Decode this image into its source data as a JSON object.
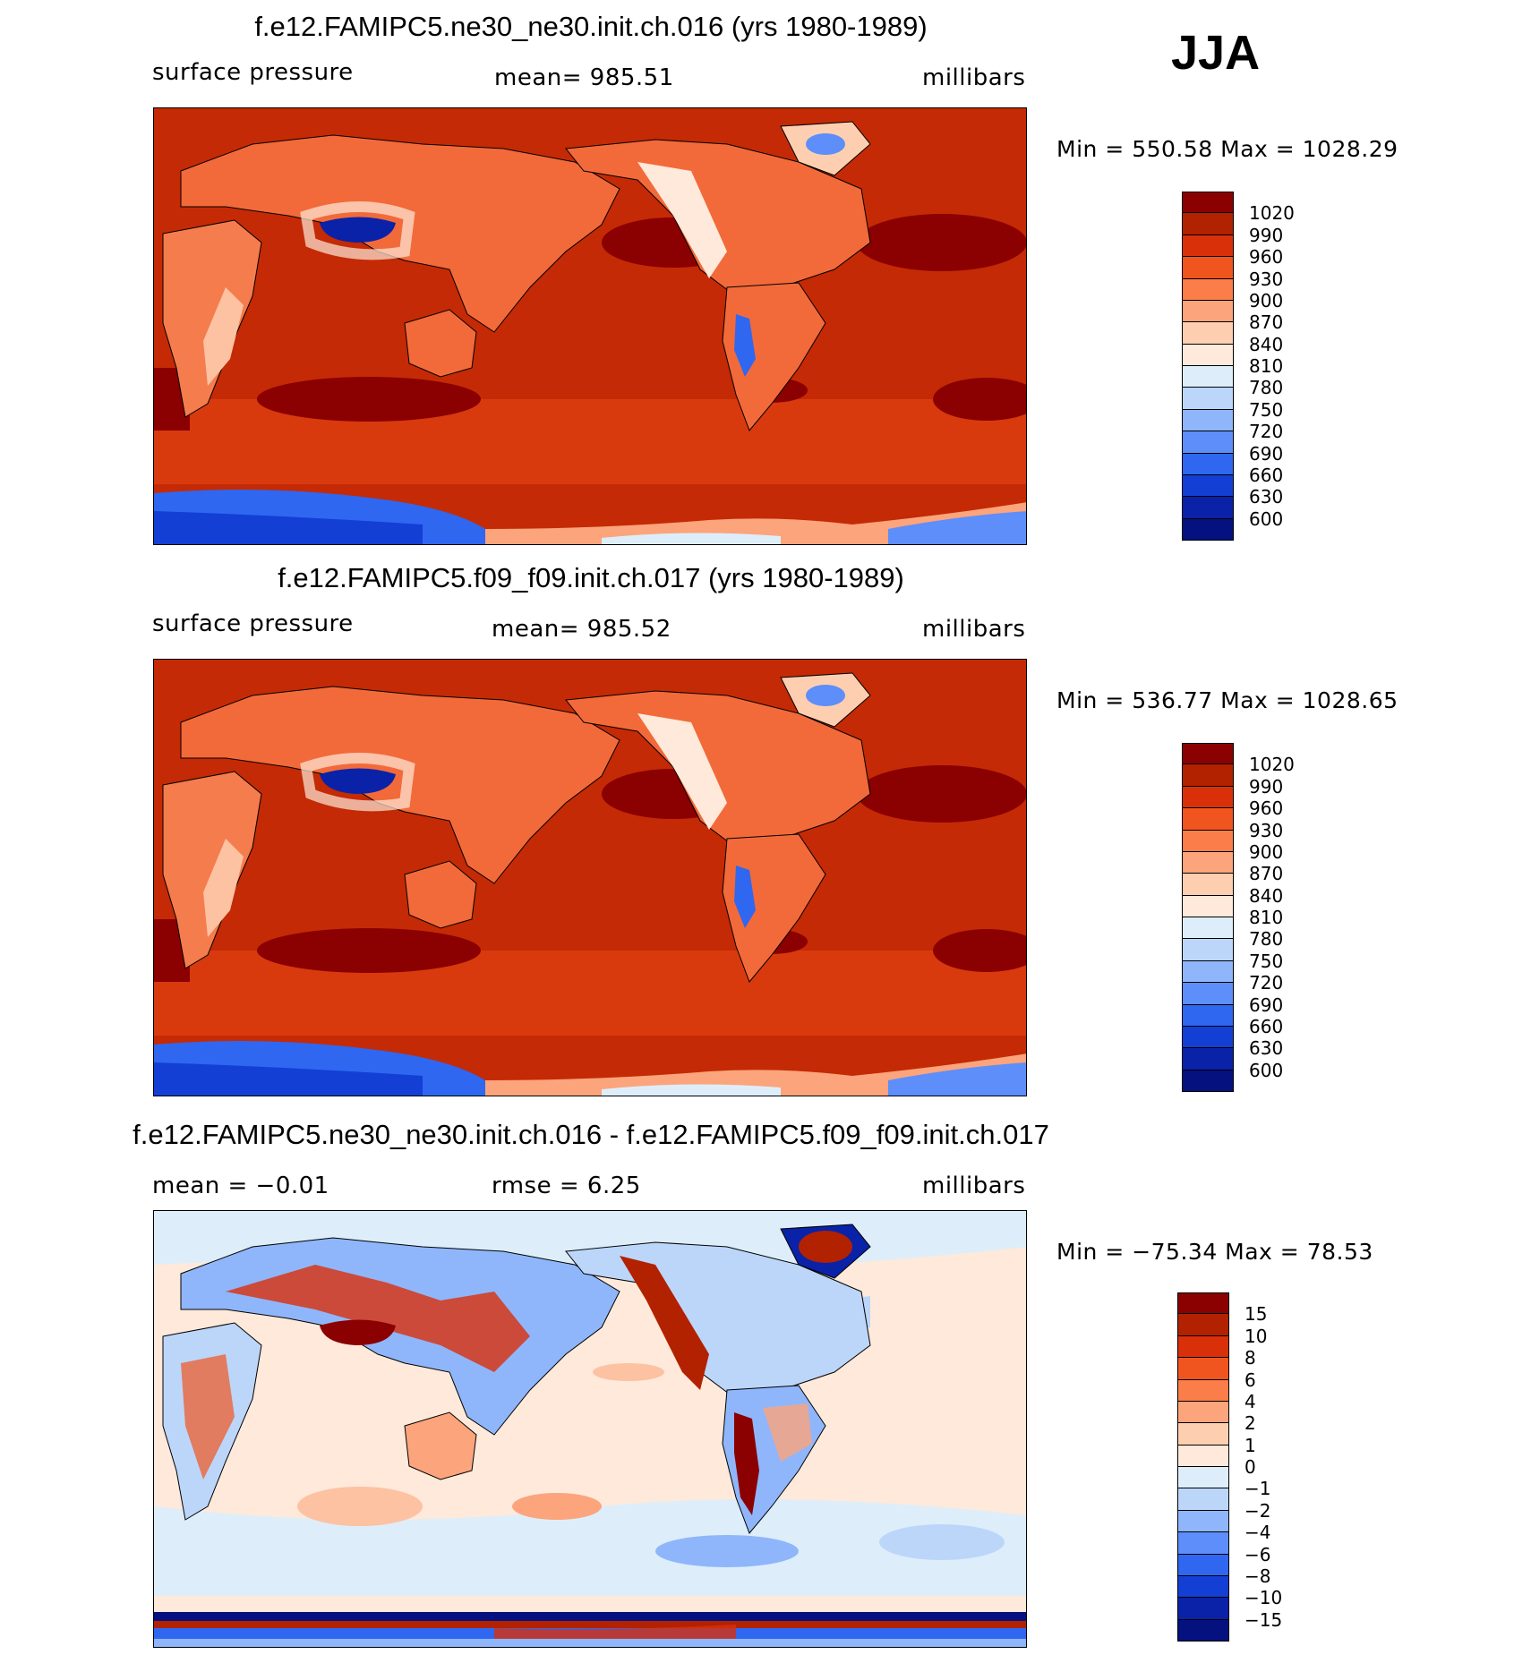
{
  "season": "JJA",
  "panels": [
    {
      "title": "f.e12.FAMIPC5.ne30_ne30.init.ch.016 (yrs 1980-1989)",
      "left_label": "surface pressure",
      "center_label": "mean=  985.51",
      "right_label": "millibars",
      "minmax": "Min  =  550.58  Max  =  1028.29",
      "colorbar": {
        "colors": [
          "#8b0000",
          "#b22100",
          "#d9300a",
          "#f1551f",
          "#fb7e4a",
          "#fca47c",
          "#fdcfb0",
          "#fee9da",
          "#ddeefa",
          "#bcd6fa",
          "#8fb6fb",
          "#5d8ef9",
          "#2f67f0",
          "#133fd5",
          "#0a22a8",
          "#04117e"
        ],
        "labels": [
          "1020",
          "990",
          "960",
          "930",
          "900",
          "870",
          "840",
          "810",
          "780",
          "750",
          "720",
          "690",
          "660",
          "630",
          "600"
        ]
      }
    },
    {
      "title": "f.e12.FAMIPC5.f09_f09.init.ch.017 (yrs 1980-1989)",
      "left_label": "surface pressure",
      "center_label": "mean=  985.52",
      "right_label": "millibars",
      "minmax": "Min  =  536.77  Max  =  1028.65",
      "colorbar": {
        "colors": [
          "#8b0000",
          "#b22100",
          "#d9300a",
          "#f1551f",
          "#fb7e4a",
          "#fca47c",
          "#fdcfb0",
          "#fee9da",
          "#ddeefa",
          "#bcd6fa",
          "#8fb6fb",
          "#5d8ef9",
          "#2f67f0",
          "#133fd5",
          "#0a22a8",
          "#04117e"
        ],
        "labels": [
          "1020",
          "990",
          "960",
          "930",
          "900",
          "870",
          "840",
          "810",
          "780",
          "750",
          "720",
          "690",
          "660",
          "630",
          "600"
        ]
      }
    },
    {
      "title": "f.e12.FAMIPC5.ne30_ne30.init.ch.016 - f.e12.FAMIPC5.f09_f09.init.ch.017",
      "left_label": "mean  =    −0.01",
      "center_label": "rmse  =     6.25",
      "right_label": "millibars",
      "minmax": "Min  =  −75.34  Max  =    78.53",
      "colorbar": {
        "colors": [
          "#8b0000",
          "#b22100",
          "#d9300a",
          "#f1551f",
          "#fb7e4a",
          "#fca47c",
          "#fdcfb0",
          "#fee9da",
          "#ddeefa",
          "#bcd6fa",
          "#8fb6fb",
          "#5d8ef9",
          "#2f67f0",
          "#133fd5",
          "#0a22a8",
          "#04117e"
        ],
        "labels": [
          "15",
          "10",
          "8",
          "6",
          "4",
          "2",
          "1",
          "0",
          "−1",
          "−2",
          "−4",
          "−6",
          "−8",
          "−10",
          "−15"
        ]
      }
    }
  ]
}
